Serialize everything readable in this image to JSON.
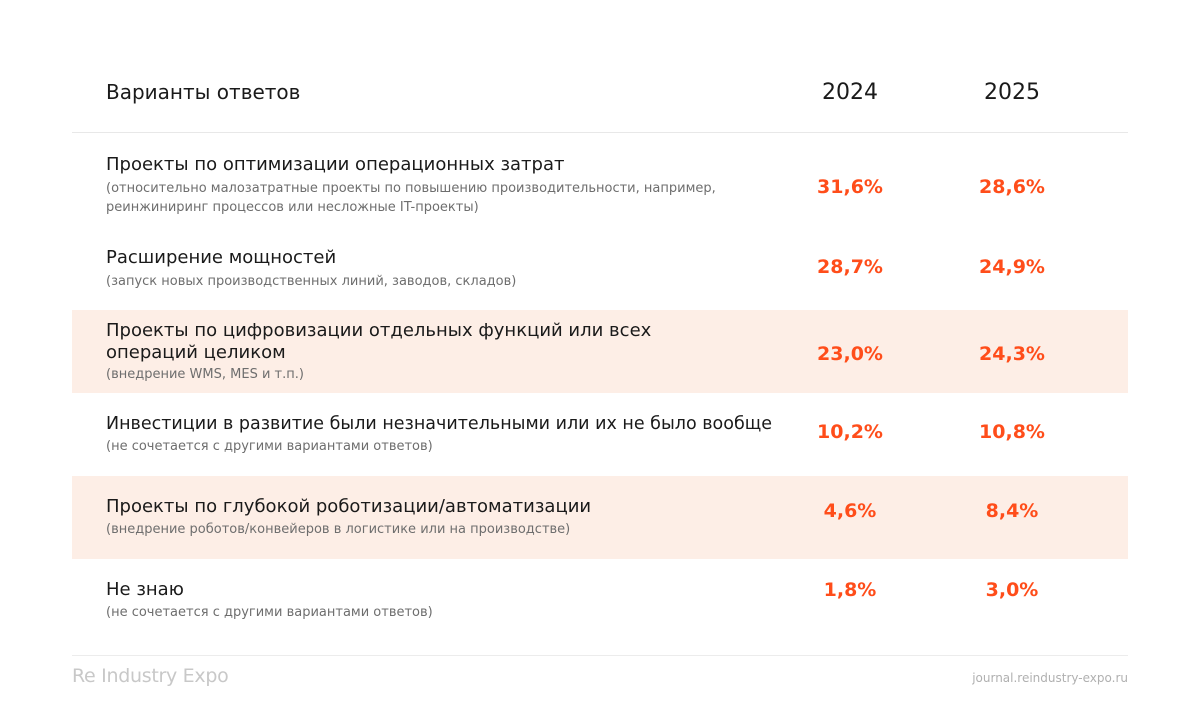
{
  "header": {
    "label": "Варианты ответов",
    "year1": "2024",
    "year2": "2025"
  },
  "rows": [
    {
      "title": "Проекты по оптимизации операционных затрат",
      "note": "(относительно малозатратные проекты по повышению производительности, например, реинжиниринг процессов или несложные IT-проекты)",
      "v2024": "31,6%",
      "v2025": "28,6%",
      "highlighted": false
    },
    {
      "title": "Расширение мощностей",
      "note": "(запуск новых производственных линий, заводов, складов)",
      "v2024": "28,7%",
      "v2025": "24,9%",
      "highlighted": false
    },
    {
      "title": "Проекты по цифровизации отдельных функций или всех операций целиком",
      "note": "(внедрение WMS, MES и т.п.)",
      "v2024": "23,0%",
      "v2025": "24,3%",
      "highlighted": true
    },
    {
      "title": "Инвестиции в развитие были незначительными или их не было вообще",
      "note": "(не сочетается с другими вариантами ответов)",
      "v2024": "10,2%",
      "v2025": "10,8%",
      "highlighted": false
    },
    {
      "title": "Проекты по глубокой роботизации/автоматизации",
      "note": "(внедрение роботов/конвейеров в логистике или на производстве)",
      "v2024": "4,6%",
      "v2025": "8,4%",
      "highlighted": true
    },
    {
      "title": "Не знаю",
      "note": "(не сочетается с другими вариантами ответов)",
      "v2024": "1,8%",
      "v2025": "3,0%",
      "highlighted": false
    }
  ],
  "footer": {
    "logo": "Re Industry Expo",
    "site": "journal.reindustry-expo.ru"
  },
  "colors": {
    "accent": "#ff4d1a",
    "highlight_bg": "#fdeee6",
    "note_text": "#6e6e6e"
  }
}
